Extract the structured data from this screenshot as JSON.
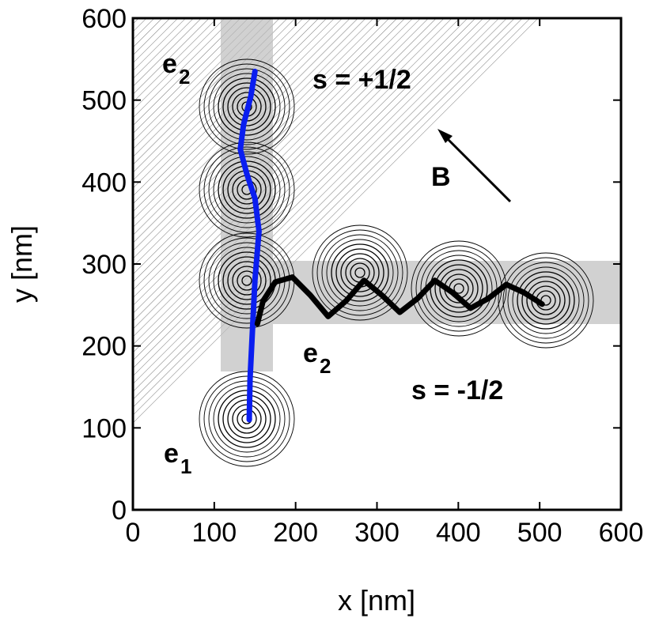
{
  "chart_data": {
    "type": "line",
    "xlabel": "x [nm]",
    "ylabel": "y [nm]",
    "xlim": [
      0,
      600
    ],
    "ylim": [
      0,
      600
    ],
    "xticks": [
      0,
      100,
      200,
      300,
      400,
      500,
      600
    ],
    "yticks": [
      0,
      100,
      200,
      300,
      400,
      500,
      600
    ],
    "series": [
      {
        "color": "#0a1ef0",
        "x": [
          143,
          144,
          147,
          150,
          155,
          150,
          140,
          132,
          136,
          145,
          150
        ],
        "values": [
          110,
          160,
          220,
          280,
          340,
          380,
          410,
          440,
          470,
          505,
          535
        ]
      },
      {
        "color": "#000000",
        "x": [
          153,
          160,
          175,
          196,
          218,
          240,
          262,
          284,
          306,
          328,
          350,
          371,
          393,
          415,
          437,
          459,
          481,
          503
        ],
        "values": [
          227,
          255,
          278,
          284,
          262,
          236,
          255,
          280,
          262,
          241,
          258,
          280,
          265,
          246,
          258,
          275,
          265,
          251
        ]
      }
    ],
    "annotations": [
      {
        "text": "e",
        "subscript": "2"
      },
      {
        "text": "s = +1/2"
      },
      {
        "text": "B"
      },
      {
        "text": "e",
        "subscript": "2"
      },
      {
        "text": "s = -1/2"
      },
      {
        "text": "e",
        "subscript": "1"
      }
    ]
  }
}
